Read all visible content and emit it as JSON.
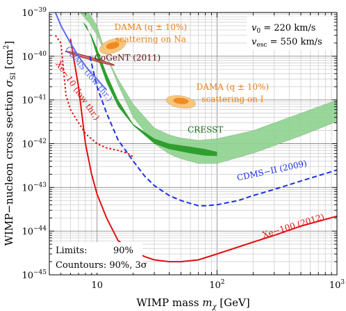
{
  "chart_data": {
    "type": "line",
    "xscale": "log",
    "yscale": "log",
    "xlim": [
      4,
      1000
    ],
    "ylim": [
      1e-45,
      1e-39
    ],
    "grid": true,
    "xlabel_main": "WIMP mass ",
    "xlabel_sym": "m",
    "xlabel_sub": "χ",
    "xlabel_unit": " [GeV]",
    "ylabel_main": "WIMP−nucleon cross section ",
    "ylabel_sym": "σ",
    "ylabel_sub": "SI",
    "ylabel_unit": " [cm",
    "ylabel_exp": "2",
    "ylabel_close": "]",
    "x_ticks": [
      {
        "value": 10,
        "base": "10",
        "exp": ""
      },
      {
        "value": 100,
        "base": "10",
        "exp": "2"
      },
      {
        "value": 1000,
        "base": "10",
        "exp": "3"
      }
    ],
    "y_ticks": [
      {
        "value": 1e-39,
        "base": "10",
        "exp": "−39"
      },
      {
        "value": 1e-40,
        "base": "10",
        "exp": "−40"
      },
      {
        "value": 1e-41,
        "base": "10",
        "exp": "−41"
      },
      {
        "value": 1e-42,
        "base": "10",
        "exp": "−42"
      },
      {
        "value": 1e-43,
        "base": "10",
        "exp": "−43"
      },
      {
        "value": 1e-44,
        "base": "10",
        "exp": "−44"
      },
      {
        "value": 1e-45,
        "base": "10",
        "exp": "−45"
      }
    ],
    "legend_box": {
      "line1_label": "Limits:",
      "line1_value": "90%",
      "line2": "Countours: 90%, 3σ"
    },
    "params_box": {
      "v0_sym": "v",
      "v0_sub": "0",
      "v0_val": " = 220 km/s",
      "vesc_sym": "v",
      "vesc_sub": "esc",
      "vesc_val": " = 550 km/s"
    },
    "colors": {
      "xenon": "#e01010",
      "cdms": "#1a2fe0",
      "cdms_lowthr": "#5a6cf0",
      "cresst_outer": "#8ed18e",
      "cresst_inner": "#2f9e2f",
      "dama_outer": "#f8c070",
      "dama_inner": "#f08a20",
      "cogent": "#8b1a1a",
      "cogent_fill": "#c86060",
      "label_dama": "#e8801a",
      "label_cresst": "#157015",
      "label_cogent": "#6b0f0f"
    },
    "series": [
      {
        "name": "Xe−100 (2012)",
        "style": "solid",
        "colorKey": "xenon",
        "x": [
          6,
          7,
          8,
          9,
          10,
          12,
          15,
          20,
          25,
          30,
          40,
          50,
          70,
          100,
          200,
          300,
          500,
          1000
        ],
        "y": [
          2.5e-40,
          2e-41,
          1e-42,
          2e-43,
          7e-44,
          2e-44,
          6e-45,
          3.5e-45,
          2.6e-45,
          2.2e-45,
          2e-45,
          2e-45,
          2.2e-45,
          3e-45,
          5.6e-45,
          8e-45,
          1.3e-44,
          2.2e-44
        ]
      },
      {
        "name": "CDMS−II (2009)",
        "style": "dashed",
        "colorKey": "cdms",
        "x": [
          8.7,
          10,
          12,
          15,
          20,
          25,
          30,
          40,
          50,
          60,
          70,
          80,
          100,
          150,
          200,
          300,
          500,
          1000
        ],
        "y": [
          1e-40,
          2e-41,
          5e-42,
          1.2e-42,
          4e-43,
          1.8e-43,
          1.1e-43,
          6.5e-44,
          5e-44,
          4.3e-44,
          3.8e-44,
          3.8e-44,
          4e-44,
          5e-44,
          6.5e-44,
          9e-44,
          1.4e-43,
          2.5e-43
        ]
      },
      {
        "name": "CDMS (low thr.)",
        "style": "solid",
        "colorKey": "cdms_lowthr",
        "x": [
          4,
          4.5,
          5,
          6,
          7,
          8,
          9,
          10,
          11,
          12
        ],
        "y": [
          2.5e-39,
          1e-39,
          5e-40,
          2e-40,
          1e-40,
          6e-41,
          4e-41,
          3e-41,
          2.2e-41,
          1.7e-41
        ]
      },
      {
        "name": "Xe−10 (low thr.)",
        "style": "dotted",
        "colorKey": "xenon",
        "x": [
          4.5,
          5,
          5.5,
          6,
          7,
          8,
          10,
          12,
          15,
          18,
          20
        ],
        "y": [
          3e-40,
          2e-40,
          1.3e-41,
          6e-42,
          3e-42,
          1.7e-42,
          1e-42,
          8e-43,
          7e-43,
          6e-43,
          5e-43
        ]
      }
    ],
    "regions": [
      {
        "name": "CRESST",
        "level": "outer",
        "colorKey": "cresst_outer",
        "x": [
          6.8,
          8.5,
          10,
          12,
          15,
          20,
          30,
          40,
          50,
          70,
          100,
          200,
          500,
          1000,
          1000,
          500,
          200,
          100,
          70,
          50,
          40,
          30,
          20,
          15,
          12,
          10,
          8.5,
          7.2,
          6.8
        ],
        "y": [
          1e-39,
          1e-39,
          5e-40,
          1e-40,
          2.2e-41,
          4e-42,
          1e-42,
          5.8e-43,
          4.5e-43,
          3.5e-43,
          3.5e-43,
          6e-43,
          1.5e-42,
          3.2e-42,
          1e-41,
          5e-42,
          2e-42,
          1.3e-42,
          1.2e-42,
          1.35e-42,
          1.6e-42,
          2.3e-42,
          8e-42,
          3e-41,
          1e-40,
          3e-40,
          6e-40,
          1e-39,
          1e-39
        ]
      },
      {
        "name": "CRESST",
        "level": "inner",
        "colorKey": "cresst_inner",
        "x": [
          7.6,
          8.2,
          9,
          10,
          12,
          15,
          20,
          30,
          40,
          60,
          80,
          100,
          100,
          80,
          60,
          40,
          30,
          20,
          15,
          12,
          10,
          9,
          8.2,
          7.6
        ],
        "y": [
          6e-40,
          5e-40,
          2.5e-40,
          1e-40,
          2.5e-41,
          7e-42,
          2.6e-42,
          1e-42,
          7.5e-43,
          6e-43,
          5.3e-43,
          5.2e-43,
          6.5e-43,
          7.5e-43,
          8.5e-43,
          1e-42,
          1.3e-42,
          2.8e-42,
          1e-41,
          4e-41,
          1.5e-40,
          3e-40,
          4.2e-40,
          6e-40
        ]
      },
      {
        "name": "DAMA (q ± 10%) scattering on Na",
        "level": "outer",
        "colorKey": "dama_outer",
        "cx": 13.5,
        "cy": 1.7e-40,
        "rx": 0.095,
        "ry": 0.19,
        "angle": -0.35
      },
      {
        "name": "DAMA (q ± 10%) scattering on Na",
        "level": "inner",
        "colorKey": "dama_inner",
        "cx": 13.5,
        "cy": 1.75e-40,
        "rx": 0.05,
        "ry": 0.085,
        "angle": -0.35
      },
      {
        "name": "DAMA (q ± 10%) scattering on I",
        "level": "outer",
        "colorKey": "dama_outer",
        "cx": 50,
        "cy": 9e-42,
        "rx": 0.11,
        "ry": 0.16,
        "angle": 0.5
      },
      {
        "name": "DAMA (q ± 10%) scattering on I",
        "level": "inner",
        "colorKey": "dama_inner",
        "cx": 50,
        "cy": 9.5e-42,
        "rx": 0.06,
        "ry": 0.075,
        "angle": 0.5
      },
      {
        "name": "CoGeNT (2011)",
        "level": "outer",
        "colorKey": "cogent_fill",
        "cx": 8.7,
        "cy": 9e-41,
        "rx": 0.025,
        "ry": 0.26,
        "angle": 0.9
      }
    ],
    "labels": [
      {
        "text": "DAMA (q ± 10%)",
        "x": 28,
        "y": 4e-40,
        "colorKey": "label_dama",
        "anchor": "middle",
        "rotate": 0
      },
      {
        "text": "scattering  on Na",
        "x": 28,
        "y": 2.1e-40,
        "colorKey": "label_dama",
        "anchor": "middle",
        "rotate": 0
      },
      {
        "text": "DAMA (q ± 10%)",
        "x": 135,
        "y": 1.7e-41,
        "colorKey": "label_dama",
        "anchor": "middle",
        "rotate": 0
      },
      {
        "text": "scattering  on I",
        "x": 135,
        "y": 9e-42,
        "colorKey": "label_dama",
        "anchor": "middle",
        "rotate": 0
      },
      {
        "text": "CoGeNT (2011)",
        "x": 9.5,
        "y": 8e-41,
        "colorKey": "label_cogent",
        "anchor": "start",
        "rotate": 0
      },
      {
        "text": "CRESST",
        "x": 80,
        "y": 1.8e-42,
        "colorKey": "label_cresst",
        "anchor": "middle",
        "rotate": 0
      },
      {
        "text": "CDMS−II (2009)",
        "x": 290,
        "y": 2.1e-43,
        "colorKey": "cdms",
        "anchor": "middle",
        "rotate": -12
      },
      {
        "text": "Xe−100 (2012)",
        "x": 440,
        "y": 1.15e-44,
        "colorKey": "xenon",
        "anchor": "middle",
        "rotate": -17
      },
      {
        "text": "CDMS (low thr.)",
        "x": 8.2,
        "y": 3.6e-41,
        "colorKey": "cdms_lowthr",
        "anchor": "middle",
        "rotate": 50
      },
      {
        "text": "Xe−10 (low thr.)",
        "x": 6.6,
        "y": 1.5e-41,
        "colorKey": "xenon",
        "anchor": "middle",
        "rotate": 55
      }
    ]
  }
}
